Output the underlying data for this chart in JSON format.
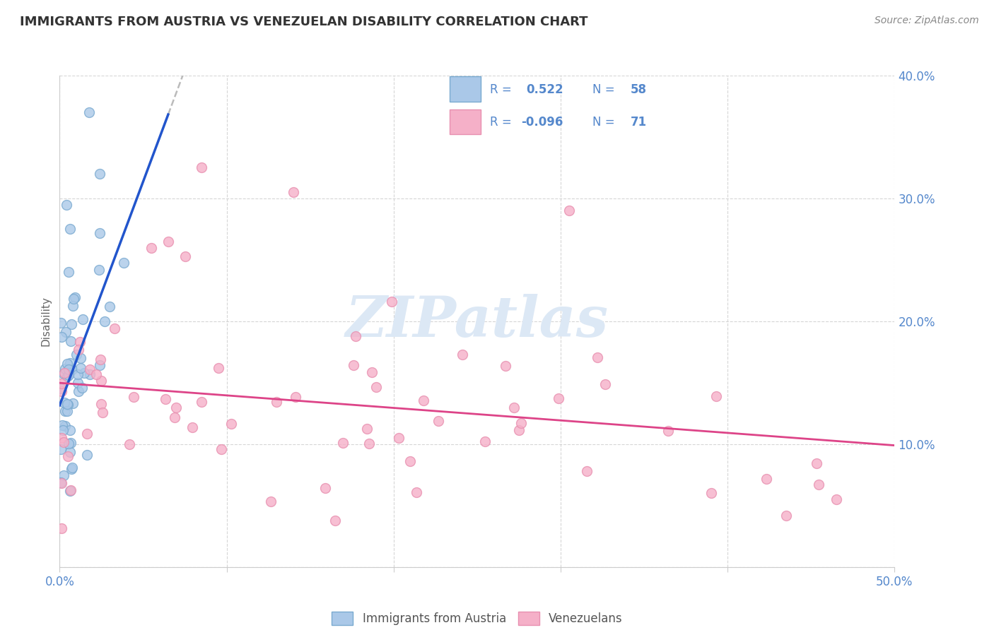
{
  "title": "IMMIGRANTS FROM AUSTRIA VS VENEZUELAN DISABILITY CORRELATION CHART",
  "source": "Source: ZipAtlas.com",
  "ylabel": "Disability",
  "xlim": [
    0.0,
    0.5
  ],
  "ylim": [
    0.0,
    0.4
  ],
  "blue_color_face": "#aac8e8",
  "blue_color_edge": "#7aaad0",
  "pink_color_face": "#f5b0c8",
  "pink_color_edge": "#e890b0",
  "blue_line_color": "#2255cc",
  "pink_line_color": "#dd4488",
  "dash_line_color": "#bbbbbb",
  "tick_label_color": "#5588cc",
  "watermark_color": "#dce8f5",
  "title_color": "#333333",
  "source_color": "#888888",
  "ylabel_color": "#666666",
  "legend_text_color": "#5588cc",
  "legend_r_dark": "#333333",
  "grid_color": "#cccccc",
  "r_blue": "0.522",
  "n_blue": "58",
  "r_pink": "-0.096",
  "n_pink": "71",
  "watermark_text": "ZIPatlas",
  "legend_label_blue": "Immigrants from Austria",
  "legend_label_pink": "Venezuelans"
}
